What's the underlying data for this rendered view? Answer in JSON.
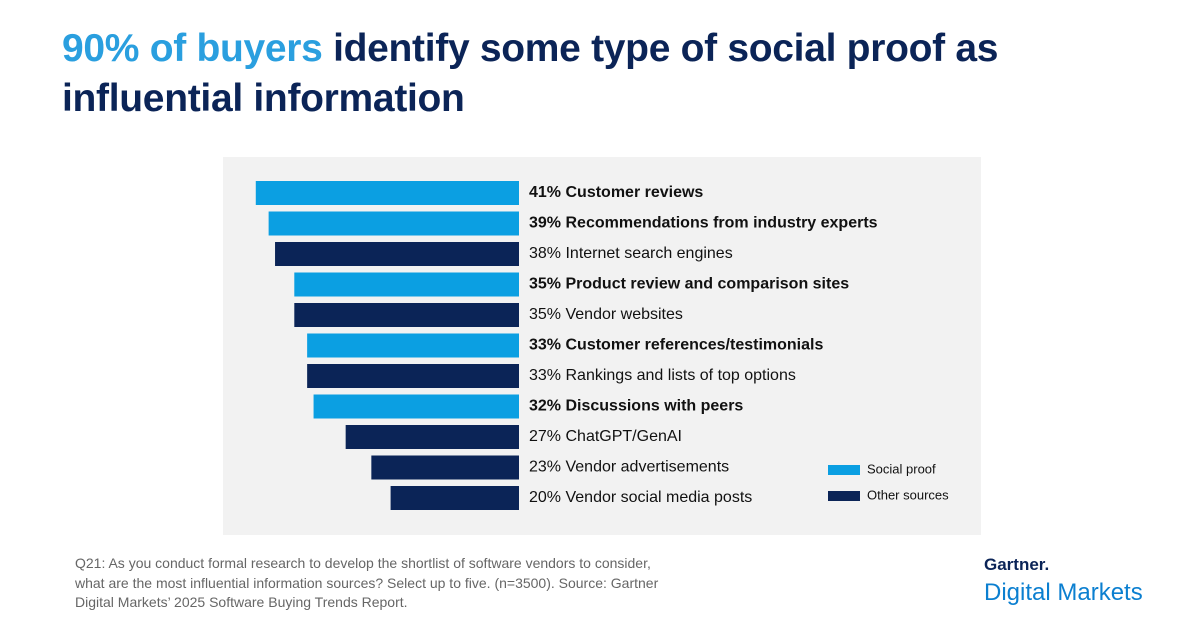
{
  "chart_data": {
    "type": "bar",
    "orientation": "horizontal",
    "title_highlight": "90% of buyers",
    "title": "identify some type of social proof as influential information",
    "categories": [
      "Customer reviews",
      "Recommendations from industry experts",
      "Internet search engines",
      "Product review and comparison sites",
      "Vendor websites",
      "Customer references/testimonials",
      "Rankings and lists of top options",
      "Discussions with peers",
      "ChatGPT/GenAI",
      "Vendor advertisements",
      "Vendor social media posts"
    ],
    "series": [
      {
        "name": "Social proof",
        "color": "#0b9fe2",
        "values": [
          41,
          39,
          null,
          35,
          null,
          33,
          null,
          32,
          null,
          null,
          null
        ],
        "value_labels": [
          "41%",
          "39%",
          null,
          "35%",
          null,
          "33%",
          null,
          "32%",
          null,
          null,
          null
        ]
      },
      {
        "name": "Other sources",
        "color": "#0b2457",
        "values": [
          null,
          null,
          38,
          null,
          35,
          null,
          33,
          null,
          27,
          23,
          20
        ],
        "value_labels": [
          null,
          null,
          "38%",
          null,
          "35%",
          null,
          "33%",
          null,
          "27%",
          "23%",
          "20%"
        ]
      }
    ],
    "footnote": [
      "Q21: As you conduct formal research to develop the shortlist of software vendors to consider,",
      "what are the most influential information sources? Select up to five. (n=3500). Source: Gartner",
      "Digital Markets’ 2025 Software Buying Trends Report."
    ],
    "brand": "Gartner.",
    "brand_sub": "Digital Markets"
  }
}
